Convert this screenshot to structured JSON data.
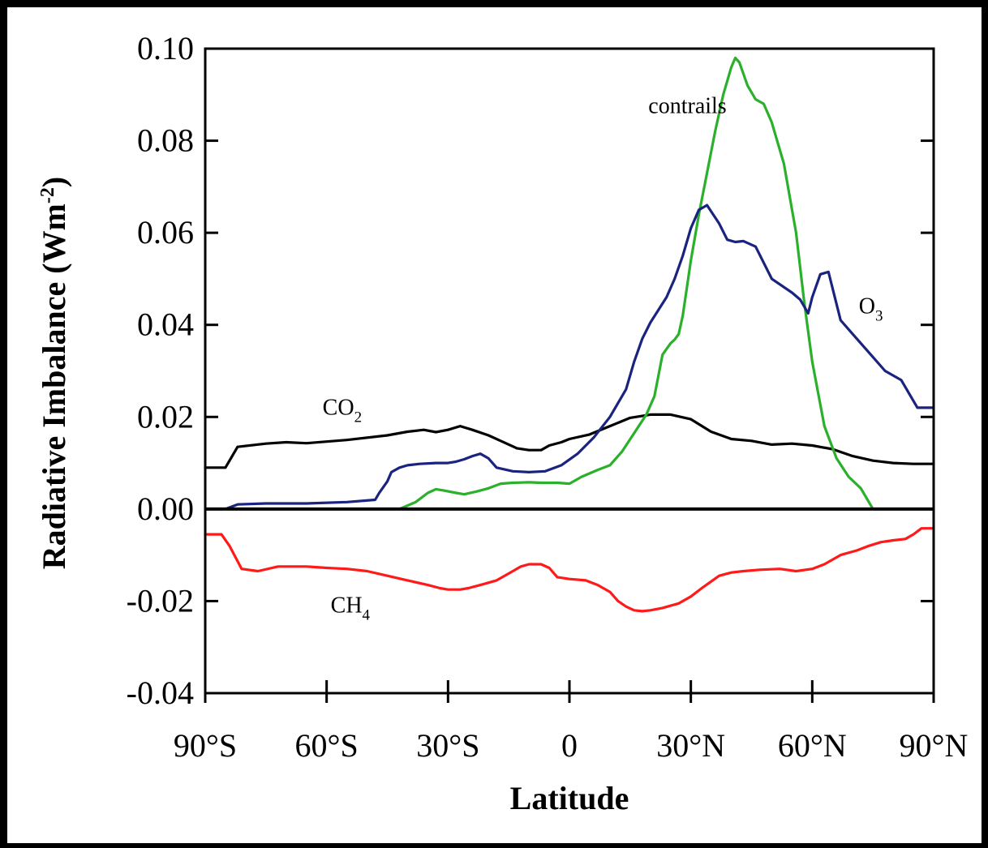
{
  "chart_data": {
    "type": "line",
    "xlabel": "Latitude",
    "ylabel": "Radiative Imbalance (Wm",
    "ylabel_sup": "-2",
    "ylabel_close": ")",
    "xlim": [
      -90,
      90
    ],
    "ylim": [
      -0.04,
      0.1
    ],
    "x_ticks": [
      -90,
      -60,
      -30,
      0,
      30,
      60,
      90
    ],
    "x_tick_labels": [
      "90°S",
      "60°S",
      "30°S",
      "0",
      "30°N",
      "60°N",
      "90°N"
    ],
    "y_ticks": [
      -0.04,
      -0.02,
      0.0,
      0.02,
      0.04,
      0.06,
      0.08,
      0.1
    ],
    "y_tick_labels": [
      "-0.04",
      "-0.02",
      "0.00",
      "0.02",
      "0.04",
      "0.06",
      "0.08",
      "0.10"
    ],
    "zero_line": true,
    "grid": false,
    "annotations": [
      {
        "series": "CO2",
        "main": "CO",
        "sub": "2",
        "x": -61,
        "y": 0.0205
      },
      {
        "series": "contrails",
        "main": "contrails",
        "sub": "",
        "x": 19.5,
        "y": 0.086
      },
      {
        "series": "O3",
        "main": "O",
        "sub": "3",
        "x": 71.5,
        "y": 0.0425
      },
      {
        "series": "CH4",
        "main": "CH",
        "sub": "4",
        "x": -59,
        "y": -0.0225
      }
    ],
    "series": [
      {
        "name": "CO2",
        "color": "#000000",
        "x": [
          -90,
          -85,
          -82,
          -75,
          -70,
          -65,
          -55,
          -45,
          -40,
          -36,
          -33,
          -30,
          -27,
          -24,
          -20,
          -17,
          -13,
          -10,
          -7,
          -5,
          -2,
          0,
          5,
          10,
          15,
          20,
          25,
          30,
          35,
          40,
          45,
          50,
          55,
          60,
          65,
          70,
          75,
          80,
          85,
          90
        ],
        "y": [
          0.009,
          0.009,
          0.0135,
          0.0142,
          0.0145,
          0.0143,
          0.015,
          0.016,
          0.0168,
          0.0172,
          0.0167,
          0.0172,
          0.018,
          0.0172,
          0.016,
          0.0148,
          0.0132,
          0.0128,
          0.0128,
          0.0138,
          0.0145,
          0.0152,
          0.0162,
          0.018,
          0.0198,
          0.0205,
          0.0205,
          0.0195,
          0.0168,
          0.0152,
          0.0148,
          0.014,
          0.0142,
          0.0138,
          0.013,
          0.0115,
          0.0105,
          0.01,
          0.0098,
          0.0098
        ]
      },
      {
        "name": "contrails",
        "color": "#2ab02a",
        "x": [
          -42,
          -38,
          -35,
          -33,
          -31,
          -28,
          -26,
          -23,
          -20,
          -17,
          -14,
          -10,
          -7,
          -3,
          0,
          3,
          7,
          10,
          13,
          16,
          19,
          21,
          23,
          25,
          26,
          27,
          28,
          30,
          32,
          34,
          36,
          38,
          40,
          41,
          42,
          44,
          46,
          48,
          50,
          53,
          56,
          58,
          60,
          63,
          66,
          69,
          72,
          75,
          90
        ],
        "y": [
          0,
          0.0015,
          0.0035,
          0.0043,
          0.004,
          0.0035,
          0.0032,
          0.0038,
          0.0045,
          0.0055,
          0.0057,
          0.0058,
          0.0057,
          0.0057,
          0.0055,
          0.007,
          0.0085,
          0.0095,
          0.0125,
          0.0165,
          0.0205,
          0.0245,
          0.0335,
          0.036,
          0.0368,
          0.038,
          0.042,
          0.054,
          0.064,
          0.073,
          0.082,
          0.09,
          0.096,
          0.098,
          0.097,
          0.092,
          0.089,
          0.088,
          0.084,
          0.075,
          0.06,
          0.045,
          0.032,
          0.018,
          0.011,
          0.007,
          0.0045,
          0.0,
          0.0
        ]
      },
      {
        "name": "O3",
        "color": "#1a237e",
        "x": [
          -85,
          -82,
          -75,
          -65,
          -55,
          -48,
          -47,
          -45,
          -44,
          -42,
          -40,
          -37,
          -33,
          -30,
          -28,
          -26,
          -24,
          -22,
          -20,
          -18,
          -14,
          -10,
          -6,
          -2,
          2,
          6,
          10,
          14,
          16,
          18,
          20,
          24,
          26,
          28,
          30,
          32,
          34,
          37,
          39,
          41,
          43,
          46,
          50,
          55,
          57,
          58,
          59,
          60,
          62,
          64,
          67,
          70,
          74,
          78,
          82,
          86,
          90
        ],
        "y": [
          0,
          0.001,
          0.0012,
          0.0012,
          0.0015,
          0.002,
          0.0035,
          0.006,
          0.008,
          0.009,
          0.0095,
          0.0098,
          0.01,
          0.01,
          0.0103,
          0.0108,
          0.0115,
          0.012,
          0.011,
          0.009,
          0.0082,
          0.008,
          0.0082,
          0.0095,
          0.012,
          0.0155,
          0.02,
          0.026,
          0.032,
          0.037,
          0.0405,
          0.046,
          0.05,
          0.055,
          0.061,
          0.065,
          0.066,
          0.062,
          0.0585,
          0.058,
          0.0582,
          0.057,
          0.05,
          0.047,
          0.0455,
          0.044,
          0.0425,
          0.046,
          0.051,
          0.0515,
          0.041,
          0.038,
          0.034,
          0.03,
          0.028,
          0.022,
          0.022
        ]
      },
      {
        "name": "CH4",
        "color": "#ff1a1a",
        "x": [
          -90,
          -86,
          -84,
          -81,
          -77,
          -72,
          -65,
          -60,
          -55,
          -50,
          -45,
          -40,
          -35,
          -32,
          -30,
          -27,
          -25,
          -22,
          -18,
          -15,
          -12,
          -10,
          -7,
          -5,
          -3,
          0,
          4,
          7,
          10,
          12,
          14,
          16,
          18,
          20,
          23,
          27,
          30,
          33,
          37,
          40,
          43,
          47,
          52,
          56,
          60,
          63,
          67,
          71,
          74,
          77,
          80,
          83,
          85,
          87,
          90
        ],
        "y": [
          -0.0055,
          -0.0055,
          -0.008,
          -0.013,
          -0.0135,
          -0.0125,
          -0.0125,
          -0.0128,
          -0.013,
          -0.0135,
          -0.0145,
          -0.0155,
          -0.0165,
          -0.0172,
          -0.0175,
          -0.0175,
          -0.0172,
          -0.0165,
          -0.0155,
          -0.014,
          -0.0125,
          -0.012,
          -0.012,
          -0.0128,
          -0.0148,
          -0.0152,
          -0.0155,
          -0.0165,
          -0.018,
          -0.02,
          -0.0212,
          -0.022,
          -0.0222,
          -0.022,
          -0.0215,
          -0.0205,
          -0.019,
          -0.017,
          -0.0145,
          -0.0138,
          -0.0135,
          -0.0132,
          -0.013,
          -0.0135,
          -0.013,
          -0.012,
          -0.01,
          -0.009,
          -0.008,
          -0.0072,
          -0.0068,
          -0.0065,
          -0.0055,
          -0.0042,
          -0.0042
        ]
      }
    ]
  }
}
